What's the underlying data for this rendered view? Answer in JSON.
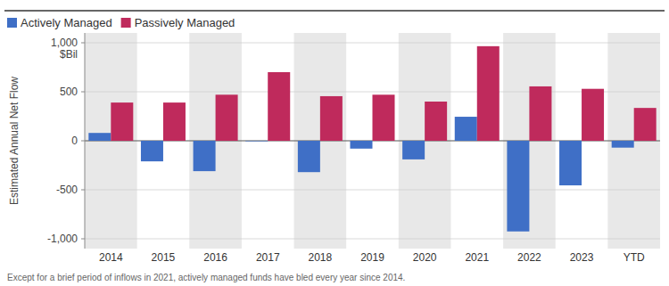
{
  "chart_data": {
    "type": "bar",
    "y_label": "Estimated Annual Net Flow",
    "y_unit": "$Bil",
    "caption": "Except for a brief period of inflows in 2021, actively managed funds have bled every year since 2014.",
    "categories": [
      "2014",
      "2015",
      "2016",
      "2017",
      "2018",
      "2019",
      "2020",
      "2021",
      "2022",
      "2023",
      "YTD"
    ],
    "series": [
      {
        "name": "Actively Managed",
        "color": "#3f6fc6",
        "values": [
          80,
          -210,
          -310,
          -5,
          -320,
          -80,
          -190,
          245,
          -925,
          -455,
          -70
        ]
      },
      {
        "name": "Passively Managed",
        "color": "#bf2a5c",
        "values": [
          390,
          390,
          470,
          700,
          455,
          470,
          400,
          965,
          555,
          530,
          335
        ]
      }
    ],
    "ylim": [
      -1100,
      1100
    ],
    "yticks": [
      {
        "value": -1000,
        "label": "-1,000"
      },
      -500,
      0,
      500,
      {
        "value": 1000,
        "label": "1,000"
      }
    ],
    "grid": true,
    "legend": "top-left"
  }
}
